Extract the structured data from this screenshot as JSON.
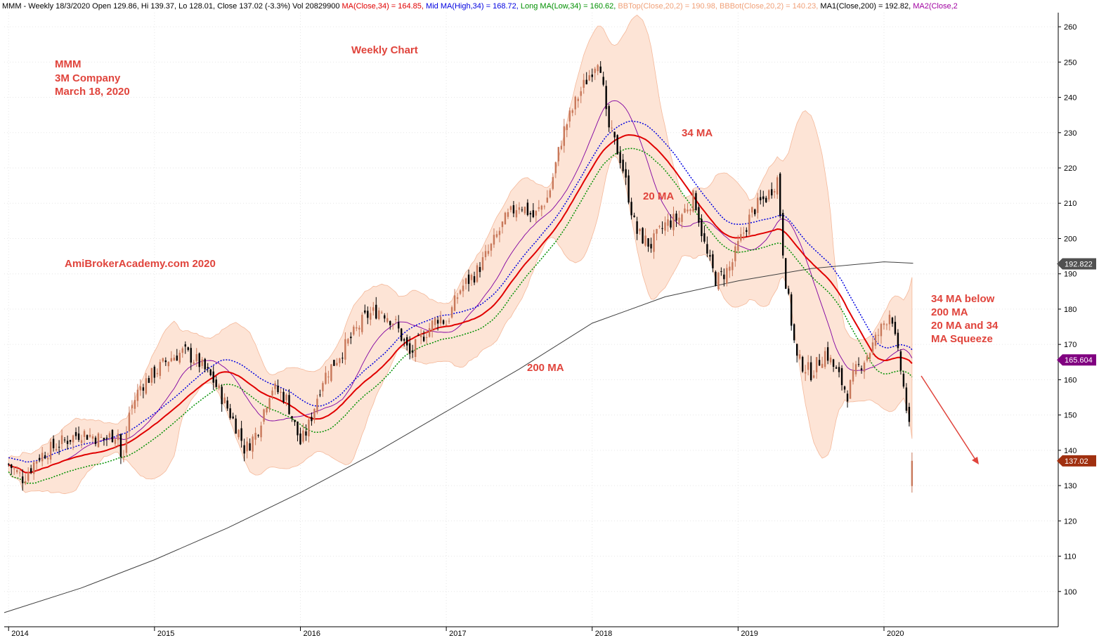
{
  "header": {
    "segments": [
      {
        "text": "MMM - Weekly 18/3/2020 Open 129.86, Hi 139.37, Lo 128.01, Close 137.02 (-3.3%) Vol 20829900 ",
        "color": "#000000"
      },
      {
        "text": "MA(Close,34) = 164.85, ",
        "color": "#e00000"
      },
      {
        "text": "Mid MA(High,34) = 168.72, ",
        "color": "#0000e0"
      },
      {
        "text": "Long MA(Low,34) = 160.62, ",
        "color": "#009000"
      },
      {
        "text": "BBTop(Close,20,2) = 190.98, ",
        "color": "#f0a078"
      },
      {
        "text": "BBBot(Close,20,2) = 140.23, ",
        "color": "#f0a078"
      },
      {
        "text": "MA1(Close,200) = 192.82, ",
        "color": "#000000"
      },
      {
        "text": "MA2(Close,2",
        "color": "#a000a0"
      }
    ]
  },
  "annotations": {
    "ticker": "MMM",
    "company": "3M Company",
    "date": "March 18, 2020",
    "chart_kind": "Weekly Chart",
    "watermark": "AmiBrokerAcademy.com  2020",
    "ma34": "34 MA",
    "ma20": "20 MA",
    "ma200": "200 MA",
    "note_line1": "34 MA below",
    "note_line2": "200 MA",
    "note_line3": "20 MA and 34",
    "note_line4": "MA Squeeze"
  },
  "price_tags": [
    {
      "value": "192.822",
      "y_value": 192.822,
      "color": "#505050"
    },
    {
      "value": "165.604",
      "y_value": 165.604,
      "color": "#800080"
    },
    {
      "value": "137.02",
      "y_value": 137.02,
      "color": "#a03010"
    }
  ],
  "colors": {
    "up": "#c8785a",
    "down": "#000000",
    "ma34": "#e00000",
    "mid_ma": "#0000e0",
    "long_ma": "#009000",
    "bollinger_fill": "#fde4d6",
    "bollinger_edge": "#f4b89a",
    "ma200": "#404040",
    "ma2": "#8000a0",
    "annotation": "#e0443c"
  },
  "chart_data": {
    "type": "candlestick",
    "title": "MMM - Weekly",
    "ylim": [
      90,
      264
    ],
    "y_ticks": [
      100,
      110,
      120,
      130,
      140,
      150,
      160,
      170,
      180,
      190,
      200,
      210,
      220,
      230,
      240,
      250,
      260
    ],
    "x_ticks": [
      "2014",
      "2015",
      "2016",
      "2017",
      "2018",
      "2019",
      "2020"
    ],
    "x_tick_years": [
      2014,
      2015,
      2016,
      2017,
      2018,
      2019,
      2020
    ],
    "x_range": [
      2013.97,
      2021.18
    ],
    "grid": true,
    "close_anchors": [
      [
        2014.0,
        136
      ],
      [
        2014.1,
        132
      ],
      [
        2014.2,
        138
      ],
      [
        2014.35,
        142
      ],
      [
        2014.5,
        145
      ],
      [
        2014.65,
        143
      ],
      [
        2014.75,
        145
      ],
      [
        2014.78,
        134
      ],
      [
        2014.82,
        150
      ],
      [
        2014.9,
        158
      ],
      [
        2015.0,
        162
      ],
      [
        2015.1,
        166
      ],
      [
        2015.2,
        168
      ],
      [
        2015.3,
        165
      ],
      [
        2015.4,
        160
      ],
      [
        2015.5,
        152
      ],
      [
        2015.58,
        145
      ],
      [
        2015.62,
        140
      ],
      [
        2015.7,
        145
      ],
      [
        2015.8,
        158
      ],
      [
        2015.9,
        155
      ],
      [
        2016.0,
        142
      ],
      [
        2016.05,
        146
      ],
      [
        2016.15,
        160
      ],
      [
        2016.25,
        166
      ],
      [
        2016.35,
        172
      ],
      [
        2016.45,
        178
      ],
      [
        2016.55,
        180
      ],
      [
        2016.65,
        176
      ],
      [
        2016.75,
        167
      ],
      [
        2016.85,
        173
      ],
      [
        2016.95,
        178
      ],
      [
        2017.0,
        176
      ],
      [
        2017.1,
        186
      ],
      [
        2017.2,
        190
      ],
      [
        2017.3,
        197
      ],
      [
        2017.4,
        205
      ],
      [
        2017.5,
        210
      ],
      [
        2017.6,
        206
      ],
      [
        2017.7,
        212
      ],
      [
        2017.8,
        230
      ],
      [
        2017.9,
        240
      ],
      [
        2018.05,
        252
      ],
      [
        2018.1,
        233
      ],
      [
        2018.2,
        222
      ],
      [
        2018.3,
        202
      ],
      [
        2018.4,
        198
      ],
      [
        2018.5,
        204
      ],
      [
        2018.6,
        206
      ],
      [
        2018.7,
        212
      ],
      [
        2018.78,
        196
      ],
      [
        2018.85,
        188
      ],
      [
        2018.95,
        192
      ],
      [
        2019.0,
        198
      ],
      [
        2019.1,
        208
      ],
      [
        2019.2,
        212
      ],
      [
        2019.27,
        217
      ],
      [
        2019.32,
        190
      ],
      [
        2019.4,
        166
      ],
      [
        2019.5,
        162
      ],
      [
        2019.6,
        168
      ],
      [
        2019.7,
        160
      ],
      [
        2019.75,
        156
      ],
      [
        2019.8,
        162
      ],
      [
        2019.9,
        168
      ],
      [
        2020.0,
        176
      ],
      [
        2020.05,
        180
      ],
      [
        2020.08,
        170
      ],
      [
        2020.12,
        162
      ],
      [
        2020.16,
        150
      ],
      [
        2020.2,
        137
      ]
    ],
    "candle_interval_years": 0.01923,
    "series": [
      {
        "name": "MA(Close,34)",
        "value": 164.85
      },
      {
        "name": "Mid MA(High,34)",
        "value": 168.72
      },
      {
        "name": "Long MA(Low,34)",
        "value": 160.62
      },
      {
        "name": "BBTop(Close,20,2)",
        "value": 190.98
      },
      {
        "name": "BBBot(Close,20,2)",
        "value": 140.23
      },
      {
        "name": "MA1(Close,200)",
        "value": 192.82
      }
    ]
  }
}
